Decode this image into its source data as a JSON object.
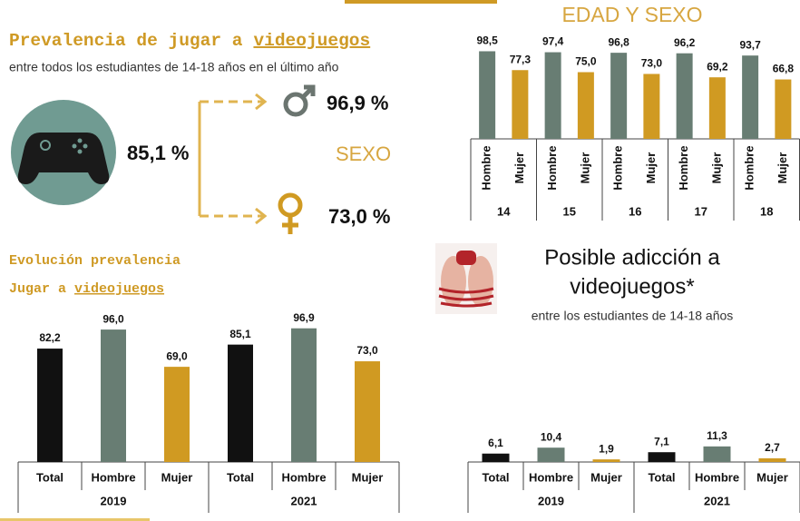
{
  "header": {
    "title": "Prevalencia de jugar a",
    "title_underlined": "videojuegos",
    "subtitle": "entre todos los estudiantes de 14-18 años en el último año",
    "total": "85,1 %",
    "male": "96,9 %",
    "female": "73,0 %",
    "sex_label": "SEXO"
  },
  "chart_data": [
    {
      "type": "bar",
      "title": "EDAD Y SEXO",
      "categories": [
        "14",
        "15",
        "16",
        "17",
        "18"
      ],
      "series": [
        {
          "name": "Hombre",
          "color": "#687d73",
          "values": [
            98.5,
            97.4,
            96.8,
            96.2,
            93.7
          ],
          "value_labels": [
            "98,5",
            "97,4",
            "96,8",
            "96,2",
            "93,7"
          ]
        },
        {
          "name": "Mujer",
          "color": "#d09a22",
          "values": [
            77.3,
            75.0,
            73.0,
            69.2,
            66.8
          ],
          "value_labels": [
            "77,3",
            "75,0",
            "73,0",
            "69,2",
            "66,8"
          ]
        }
      ],
      "ylim": [
        0,
        100
      ]
    },
    {
      "type": "bar",
      "title": "Evolución prevalencia",
      "subtitle": "Jugar a",
      "subtitle_underlined": "videojuegos",
      "categories": [
        "2019",
        "2021"
      ],
      "series": [
        {
          "name": "Total",
          "color": "#111111",
          "values": [
            82.2,
            85.1
          ],
          "value_labels": [
            "82,2",
            "85,1"
          ]
        },
        {
          "name": "Hombre",
          "color": "#687d73",
          "values": [
            96.0,
            96.9
          ],
          "value_labels": [
            "96,0",
            "96,9"
          ]
        },
        {
          "name": "Mujer",
          "color": "#d09a22",
          "values": [
            69.0,
            73.0
          ],
          "value_labels": [
            "69,0",
            "73,0"
          ]
        }
      ],
      "ylim": [
        0,
        100
      ]
    },
    {
      "type": "bar",
      "title": "Posible adicción a",
      "title_line2": "videojuegos*",
      "subtitle": "entre los estudiantes de 14-18 años",
      "categories": [
        "2019",
        "2021"
      ],
      "series": [
        {
          "name": "Total",
          "color": "#111111",
          "values": [
            6.1,
            7.1
          ],
          "value_labels": [
            "6,1",
            "7,1"
          ]
        },
        {
          "name": "Hombre",
          "color": "#687d73",
          "values": [
            10.4,
            11.3
          ],
          "value_labels": [
            "10,4",
            "11,3"
          ]
        },
        {
          "name": "Mujer",
          "color": "#d09a22",
          "values": [
            1.9,
            2.7
          ],
          "value_labels": [
            "1,9",
            "2,7"
          ]
        }
      ],
      "ylim": [
        0,
        100
      ]
    }
  ]
}
